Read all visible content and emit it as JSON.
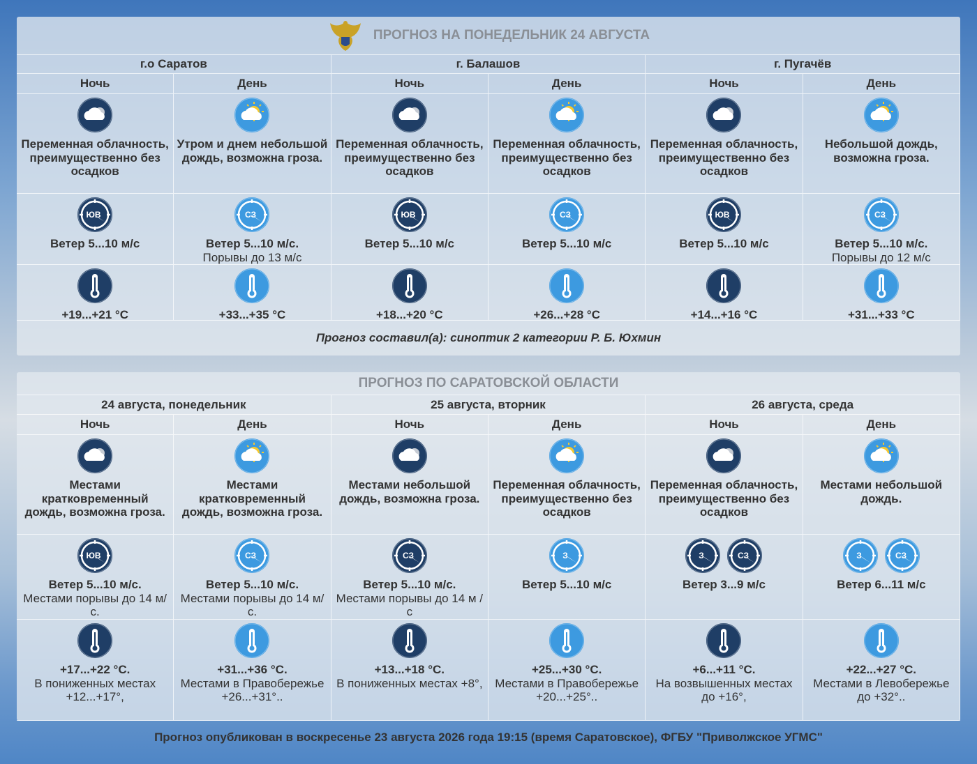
{
  "forecast_city": {
    "title": "ПРОГНОЗ НА ПОНЕДЕЛЬНИК 24 АВГУСТА",
    "groups": [
      {
        "name": "г.о Саратов",
        "periods": [
          {
            "label": "Ночь",
            "description": "Переменная облачность, преимущественно без осадков",
            "wind_dirs": [
              "ЮВ"
            ],
            "wind": "Ветер 5...10 м/с",
            "temperature": "+19...+21 °C"
          },
          {
            "label": "День",
            "description": "Утром и днем небольшой дождь, возможна гроза.",
            "wind_dirs": [
              "СЗ"
            ],
            "wind": "Ветер 5...10 м/с.",
            "wind_note": "Порывы до 13 м/с",
            "temperature": "+33...+35 °C"
          }
        ]
      },
      {
        "name": "г. Балашов",
        "periods": [
          {
            "label": "Ночь",
            "description": "Переменная облачность, преимущественно без осадков",
            "wind_dirs": [
              "ЮВ"
            ],
            "wind": "Ветер 5...10 м/с",
            "temperature": "+18...+20 °C"
          },
          {
            "label": "День",
            "description": "Переменная облачность, преимущественно без осадков",
            "wind_dirs": [
              "СЗ"
            ],
            "wind": "Ветер 5...10 м/с",
            "temperature": "+26...+28 °C"
          }
        ]
      },
      {
        "name": "г. Пугачёв",
        "periods": [
          {
            "label": "Ночь",
            "description": "Переменная облачность, преимущественно без осадков",
            "wind_dirs": [
              "ЮВ"
            ],
            "wind": "Ветер 5...10 м/с",
            "temperature": "+14...+16 °C"
          },
          {
            "label": "День",
            "description": "Небольшой дождь, возможна гроза.",
            "wind_dirs": [
              "СЗ"
            ],
            "wind": "Ветер 5...10 м/с.",
            "wind_note": "Порывы до 12 м/с",
            "temperature": "+31...+33 °C"
          }
        ]
      }
    ],
    "author": "Прогноз составил(а): синоптик 2 категории Р. Б. Юхмин"
  },
  "forecast_region": {
    "title": "ПРОГНОЗ ПО САРАТОВСКОЙ ОБЛАСТИ",
    "groups": [
      {
        "name": "24 августа, понедельник",
        "periods": [
          {
            "label": "Ночь",
            "description": "Местами кратковременный дождь, возможна гроза.",
            "wind_dirs": [
              "ЮВ"
            ],
            "wind": "Ветер 5...10 м/с.",
            "wind_note": "Местами порывы до 14 м/с.",
            "temperature": "+17...+22 °C.",
            "temperature_note": "В пониженных местах +12...+17°,"
          },
          {
            "label": "День",
            "description": "Местами кратковременный дождь, возможна гроза.",
            "wind_dirs": [
              "СЗ"
            ],
            "wind": "Ветер 5...10 м/с.",
            "wind_note": "Местами порывы до 14 м/с.",
            "temperature": "+31...+36 °C.",
            "temperature_note": "Местами в Правобережье +26...+31°.."
          }
        ]
      },
      {
        "name": "25 августа, вторник",
        "periods": [
          {
            "label": "Ночь",
            "description": "Местами небольшой дождь, возможна гроза.",
            "wind_dirs": [
              "СЗ"
            ],
            "wind": "Ветер 5...10 м/с.",
            "wind_note": "Местами порывы до 14 м /с",
            "temperature": "+13...+18 °C.",
            "temperature_note": "В пониженных местах +8°,"
          },
          {
            "label": "День",
            "description": "Переменная облачность, преимущественно без осадков",
            "wind_dirs": [
              "З"
            ],
            "wind": "Ветер 5...10 м/с",
            "temperature": "+25...+30 °C.",
            "temperature_note": "Местами в Правобережье +20...+25°.."
          }
        ]
      },
      {
        "name": "26 августа, среда",
        "periods": [
          {
            "label": "Ночь",
            "description": "Переменная облачность, преимущественно без осадков",
            "wind_dirs": [
              "З",
              "СЗ"
            ],
            "wind": "Ветер 3...9 м/с",
            "temperature": "+6...+11 °C.",
            "temperature_note": "На возвышенных местах до +16°,"
          },
          {
            "label": "День",
            "description": "Местами небольшой дождь.",
            "wind_dirs": [
              "З",
              "СЗ"
            ],
            "wind": "Ветер 6...11 м/с",
            "temperature": "+22...+27 °C.",
            "temperature_note": "Местами в Левобережье до +32°.."
          }
        ]
      }
    ]
  },
  "footer": "Прогноз опубликован в воскресенье 23 августа 2026 года 19:15 (время Саратовское), ФГБУ \"Приволжское УГМС\""
}
